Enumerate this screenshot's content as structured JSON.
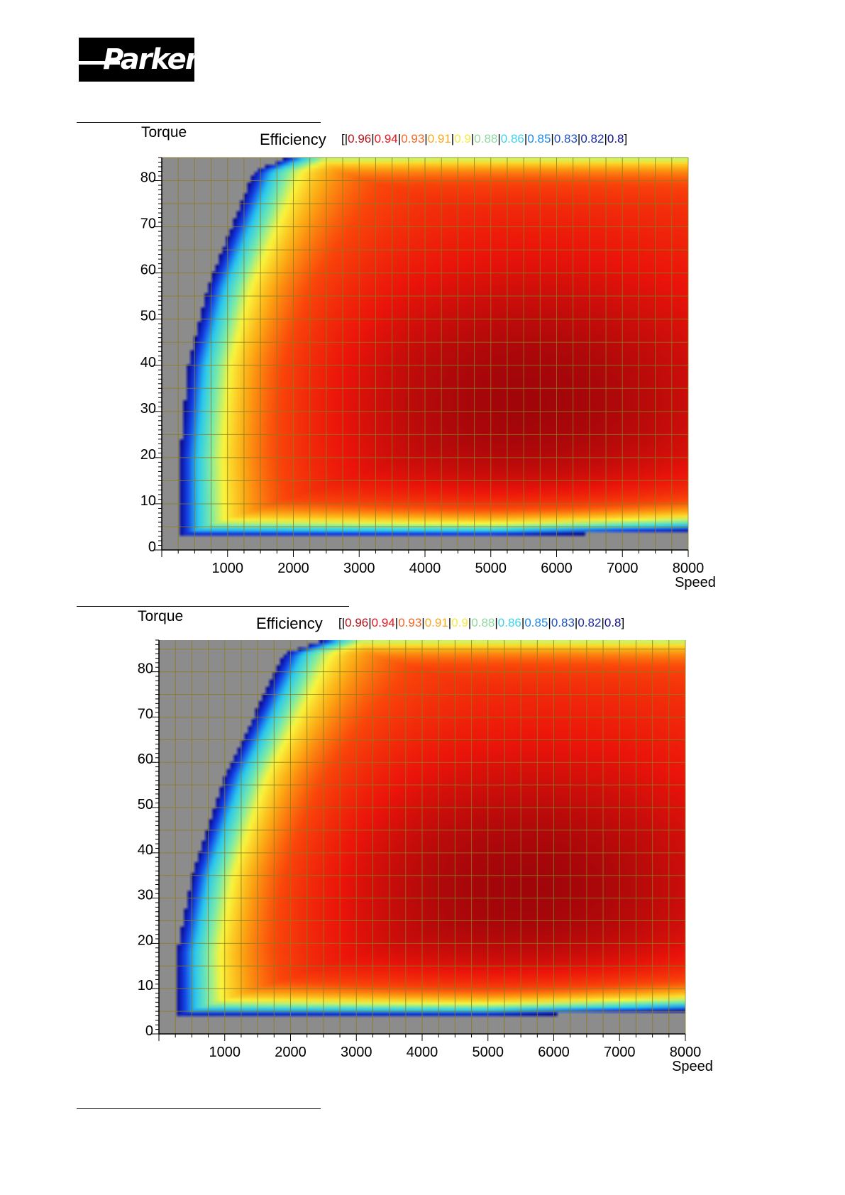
{
  "header": {
    "logo_text": "Parker"
  },
  "legend": {
    "title": "Efficiency",
    "open": "[",
    "close": "]",
    "separator": "|",
    "entries": [
      {
        "value": "0.96",
        "color": "#b5121b"
      },
      {
        "value": "0.94",
        "color": "#e8141c"
      },
      {
        "value": "0.93",
        "color": "#f26522"
      },
      {
        "value": "0.91",
        "color": "#f7a81b"
      },
      {
        "value": "0.9",
        "color": "#f5ec3f"
      },
      {
        "value": "0.88",
        "color": "#8fd9a0"
      },
      {
        "value": "0.86",
        "color": "#3fd1e6"
      },
      {
        "value": "0.85",
        "color": "#1e88e5"
      },
      {
        "value": "0.83",
        "color": "#1f4fbf"
      },
      {
        "value": "0.82",
        "color": "#1a2aa6"
      },
      {
        "value": "0.8",
        "color": "#0b0b8c"
      }
    ]
  },
  "chart_data": [
    {
      "type": "heatmap",
      "ylabel": "Torque",
      "xlabel": "Speed",
      "colorbar_label": "Efficiency",
      "xlim": [
        0,
        8000
      ],
      "ylim": [
        0,
        85
      ],
      "xticks": [
        "1000",
        "2000",
        "3000",
        "4000",
        "5000",
        "6000",
        "7000",
        "8000"
      ],
      "yticks": [
        "0",
        "10",
        "20",
        "30",
        "40",
        "50",
        "60",
        "70",
        "80"
      ],
      "colorbar_levels": [
        0.96,
        0.94,
        0.93,
        0.91,
        0.9,
        0.88,
        0.86,
        0.85,
        0.83,
        0.82,
        0.8
      ],
      "grid": true,
      "limit_curve": [
        [
          270,
          4
        ],
        [
          270,
          20
        ],
        [
          400,
          40
        ],
        [
          700,
          57
        ],
        [
          1400,
          82
        ],
        [
          1900,
          85
        ],
        [
          8000,
          85
        ]
      ],
      "bottom_curve": [
        [
          270,
          3
        ],
        [
          5000,
          3
        ],
        [
          8000,
          4
        ]
      ],
      "peak_efficiency_region": {
        "speed": 5500,
        "torque": 32,
        "efficiency": 0.96
      }
    },
    {
      "type": "heatmap",
      "ylabel": "Torque",
      "xlabel": "Speed",
      "colorbar_label": "Efficiency",
      "xlim": [
        0,
        8000
      ],
      "ylim": [
        0,
        87
      ],
      "xticks": [
        "1000",
        "2000",
        "3000",
        "4000",
        "5000",
        "6000",
        "7000",
        "8000"
      ],
      "yticks": [
        "0",
        "10",
        "20",
        "30",
        "40",
        "50",
        "60",
        "70",
        "80"
      ],
      "colorbar_levels": [
        0.96,
        0.94,
        0.93,
        0.91,
        0.9,
        0.88,
        0.86,
        0.85,
        0.83,
        0.82,
        0.8
      ],
      "grid": true,
      "limit_curve": [
        [
          270,
          4
        ],
        [
          270,
          18
        ],
        [
          500,
          35
        ],
        [
          1000,
          57
        ],
        [
          1900,
          84
        ],
        [
          2500,
          87
        ],
        [
          8000,
          87
        ]
      ],
      "bottom_curve": [
        [
          270,
          4
        ],
        [
          5000,
          4
        ],
        [
          8000,
          5
        ]
      ],
      "peak_efficiency_region": {
        "speed": 5500,
        "torque": 32,
        "efficiency": 0.96
      }
    }
  ]
}
